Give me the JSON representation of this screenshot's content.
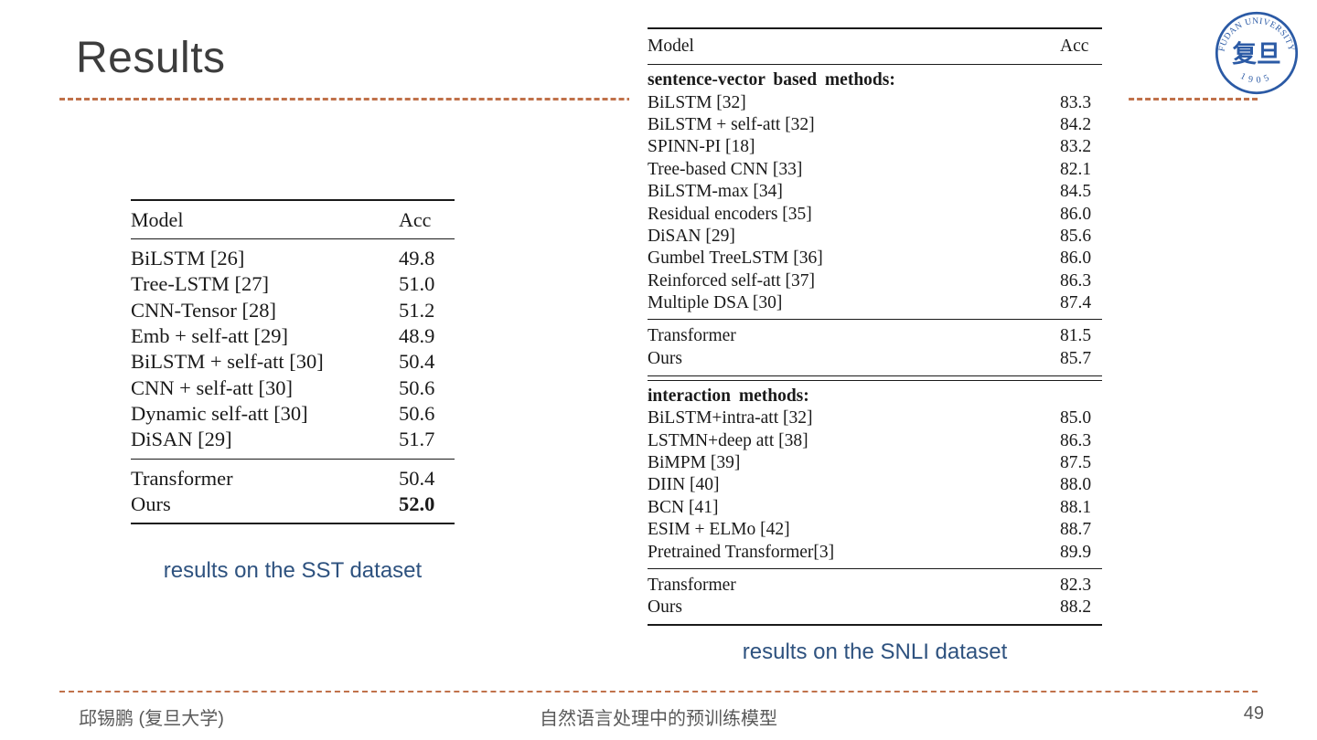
{
  "slide": {
    "title": "Results",
    "footer_left": "邱锡鹏 (复旦大学)",
    "footer_center": "自然语言处理中的预训练模型",
    "page_number": "49"
  },
  "colors": {
    "accent_dash": "#c0714a",
    "caption_blue": "#2e527f",
    "title_gray": "#3d3d3d",
    "logo_blue": "#2b5aa5",
    "table_ink": "#1a1a1a"
  },
  "logo": {
    "name": "fudan-university-seal",
    "top_text": "FUDAN UNIVERSITY",
    "center_text": "复旦",
    "year": "1905"
  },
  "sst_table": {
    "caption": "results on the SST dataset",
    "headers": [
      "Model",
      "Acc"
    ],
    "rows": [
      {
        "model": "BiLSTM [26]",
        "acc": "49.8"
      },
      {
        "model": "Tree-LSTM [27]",
        "acc": "51.0"
      },
      {
        "model": "CNN-Tensor [28]",
        "acc": "51.2"
      },
      {
        "model": "Emb + self-att [29]",
        "acc": "48.9"
      },
      {
        "model": "BiLSTM + self-att [30]",
        "acc": "50.4"
      },
      {
        "model": "CNN + self-att [30]",
        "acc": "50.6"
      },
      {
        "model": "Dynamic self-att [30]",
        "acc": "50.6"
      },
      {
        "model": "DiSAN [29]",
        "acc": "51.7"
      }
    ],
    "summary_rows": [
      {
        "model": "Transformer",
        "acc": "50.4"
      },
      {
        "model": "Ours",
        "acc": "52.0",
        "bold_acc": true
      }
    ]
  },
  "snli_table": {
    "caption": "results on the SNLI dataset",
    "headers": [
      "Model",
      "Acc"
    ],
    "sections": [
      {
        "label": "sentence-vector based methods:",
        "rows": [
          {
            "model": "BiLSTM [32]",
            "acc": "83.3"
          },
          {
            "model": "BiLSTM + self-att [32]",
            "acc": "84.2"
          },
          {
            "model": "SPINN-PI [18]",
            "acc": "83.2"
          },
          {
            "model": "Tree-based CNN [33]",
            "acc": "82.1"
          },
          {
            "model": "BiLSTM-max [34]",
            "acc": "84.5"
          },
          {
            "model": "Residual encoders [35]",
            "acc": "86.0"
          },
          {
            "model": "DiSAN [29]",
            "acc": "85.6"
          },
          {
            "model": "Gumbel TreeLSTM [36]",
            "acc": "86.0"
          },
          {
            "model": "Reinforced self-att [37]",
            "acc": "86.3"
          },
          {
            "model": "Multiple DSA [30]",
            "acc": "87.4"
          }
        ],
        "summary_rows": [
          {
            "model": "Transformer",
            "acc": "81.5"
          },
          {
            "model": "Ours",
            "acc": "85.7"
          }
        ]
      },
      {
        "label": "interaction methods:",
        "rows": [
          {
            "model": "BiLSTM+intra-att [32]",
            "acc": "85.0"
          },
          {
            "model": "LSTMN+deep att [38]",
            "acc": "86.3"
          },
          {
            "model": "BiMPM [39]",
            "acc": "87.5"
          },
          {
            "model": "DIIN [40]",
            "acc": "88.0"
          },
          {
            "model": "BCN [41]",
            "acc": "88.1"
          },
          {
            "model": "ESIM + ELMo [42]",
            "acc": "88.7"
          },
          {
            "model": "Pretrained Transformer[3]",
            "acc": "89.9"
          }
        ],
        "summary_rows": [
          {
            "model": "Transformer",
            "acc": "82.3"
          },
          {
            "model": "Ours",
            "acc": "88.2"
          }
        ]
      }
    ]
  }
}
